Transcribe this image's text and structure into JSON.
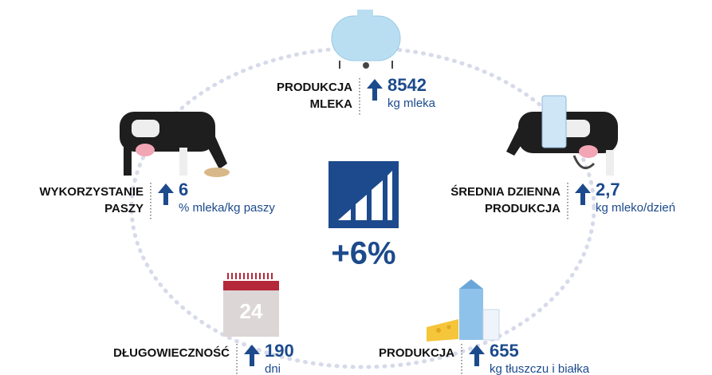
{
  "center": {
    "value_text": "+6%"
  },
  "calendar_day": "24",
  "items": [
    {
      "label": [
        "PRODUKCJA",
        "MLEKA"
      ],
      "value": "8542",
      "unit": "kg mleka"
    },
    {
      "label": [
        "WYKORZYSTANIE",
        "PASZY"
      ],
      "value": "6",
      "unit": "% mleka/kg paszy"
    },
    {
      "label": [
        "ŚREDNIA DZIENNA",
        "PRODUKCJA"
      ],
      "value": "2,7",
      "unit": "kg mleko/dzień"
    },
    {
      "label": [
        "DŁUGOWIECZNOŚĆ"
      ],
      "value": "190",
      "unit": "dni"
    },
    {
      "label": [
        "PRODUKCJA"
      ],
      "value": "655",
      "unit": "kg tłuszczu i białka"
    }
  ]
}
